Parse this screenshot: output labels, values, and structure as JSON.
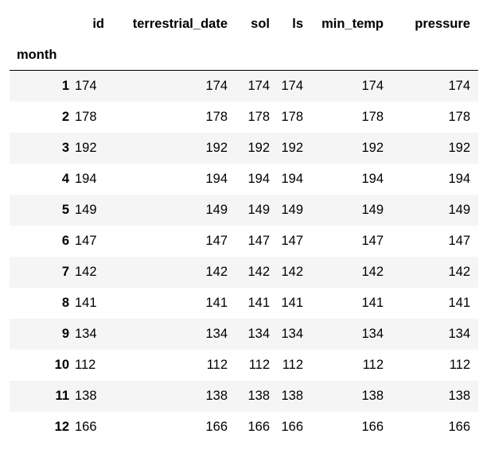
{
  "table": {
    "columns": [
      "id",
      "terrestrial_date",
      "sol",
      "ls",
      "min_temp",
      "pressure"
    ],
    "index_name": "month",
    "rows": [
      {
        "index": "1",
        "values": [
          "174",
          "174",
          "174",
          "174",
          "174",
          "174"
        ]
      },
      {
        "index": "2",
        "values": [
          "178",
          "178",
          "178",
          "178",
          "178",
          "178"
        ]
      },
      {
        "index": "3",
        "values": [
          "192",
          "192",
          "192",
          "192",
          "192",
          "192"
        ]
      },
      {
        "index": "4",
        "values": [
          "194",
          "194",
          "194",
          "194",
          "194",
          "194"
        ]
      },
      {
        "index": "5",
        "values": [
          "149",
          "149",
          "149",
          "149",
          "149",
          "149"
        ]
      },
      {
        "index": "6",
        "values": [
          "147",
          "147",
          "147",
          "147",
          "147",
          "147"
        ]
      },
      {
        "index": "7",
        "values": [
          "142",
          "142",
          "142",
          "142",
          "142",
          "142"
        ]
      },
      {
        "index": "8",
        "values": [
          "141",
          "141",
          "141",
          "141",
          "141",
          "141"
        ]
      },
      {
        "index": "9",
        "values": [
          "134",
          "134",
          "134",
          "134",
          "134",
          "134"
        ]
      },
      {
        "index": "10",
        "values": [
          "112",
          "112",
          "112",
          "112",
          "112",
          "112"
        ]
      },
      {
        "index": "11",
        "values": [
          "138",
          "138",
          "138",
          "138",
          "138",
          "138"
        ]
      },
      {
        "index": "12",
        "values": [
          "166",
          "166",
          "166",
          "166",
          "166",
          "166"
        ]
      }
    ]
  },
  "colors": {
    "stripe": "#f5f5f5",
    "background": "#ffffff",
    "text": "#000000",
    "header_rule": "#000000"
  }
}
